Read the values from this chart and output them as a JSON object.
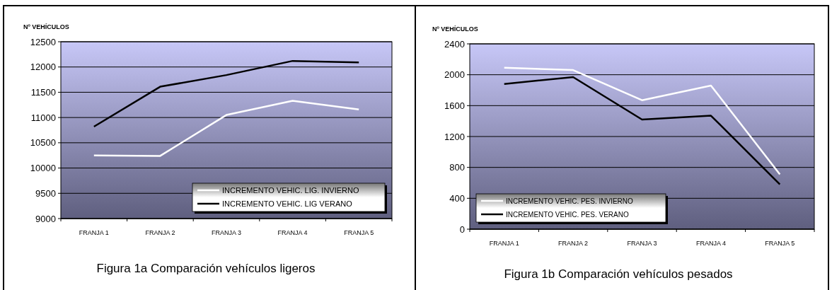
{
  "chart_data": [
    {
      "type": "line",
      "ylabel": "Nº VEHÍCULOS",
      "categories": [
        "FRANJA 1",
        "FRANJA 2",
        "FRANJA 3",
        "FRANJA 4",
        "FRANJA 5"
      ],
      "series": [
        {
          "name": "INCREMENTO VEHIC. LIG. INVIERNO",
          "color": "#ffffff",
          "values": [
            10250,
            10240,
            11050,
            11330,
            11160
          ]
        },
        {
          "name": "INCREMENTO VEHIC. LIG VERANO",
          "color": "#000000",
          "values": [
            10820,
            11610,
            11840,
            12120,
            12090
          ]
        }
      ],
      "ylim": [
        9000,
        12500
      ],
      "yticks": [
        9000,
        9500,
        10000,
        10500,
        11000,
        11500,
        12000,
        12500
      ],
      "grid": "y",
      "legend": "bottom right",
      "annotations": [
        "Figura 1a Comparación vehículos ligeros"
      ]
    },
    {
      "type": "line",
      "ylabel": "Nº VEHÍCULOS",
      "categories": [
        "FRANJA 1",
        "FRANJA 2",
        "FRANJA 3",
        "FRANJA 4",
        "FRANJA 5"
      ],
      "series": [
        {
          "name": "INCREMENTO VEHIC. PES. INVIERNO",
          "color": "#ffffff",
          "values": [
            2090,
            2060,
            1670,
            1860,
            710
          ]
        },
        {
          "name": "INCREMENTO VEHIC. PES. VERANO",
          "color": "#000000",
          "values": [
            1880,
            1970,
            1420,
            1470,
            580
          ]
        }
      ],
      "ylim": [
        0,
        2400
      ],
      "yticks": [
        0,
        400,
        800,
        1200,
        1600,
        2000,
        2400
      ],
      "grid": "y",
      "legend": "bottom left",
      "annotations": [
        "Figura 1b Comparación vehículos pesados"
      ]
    }
  ]
}
